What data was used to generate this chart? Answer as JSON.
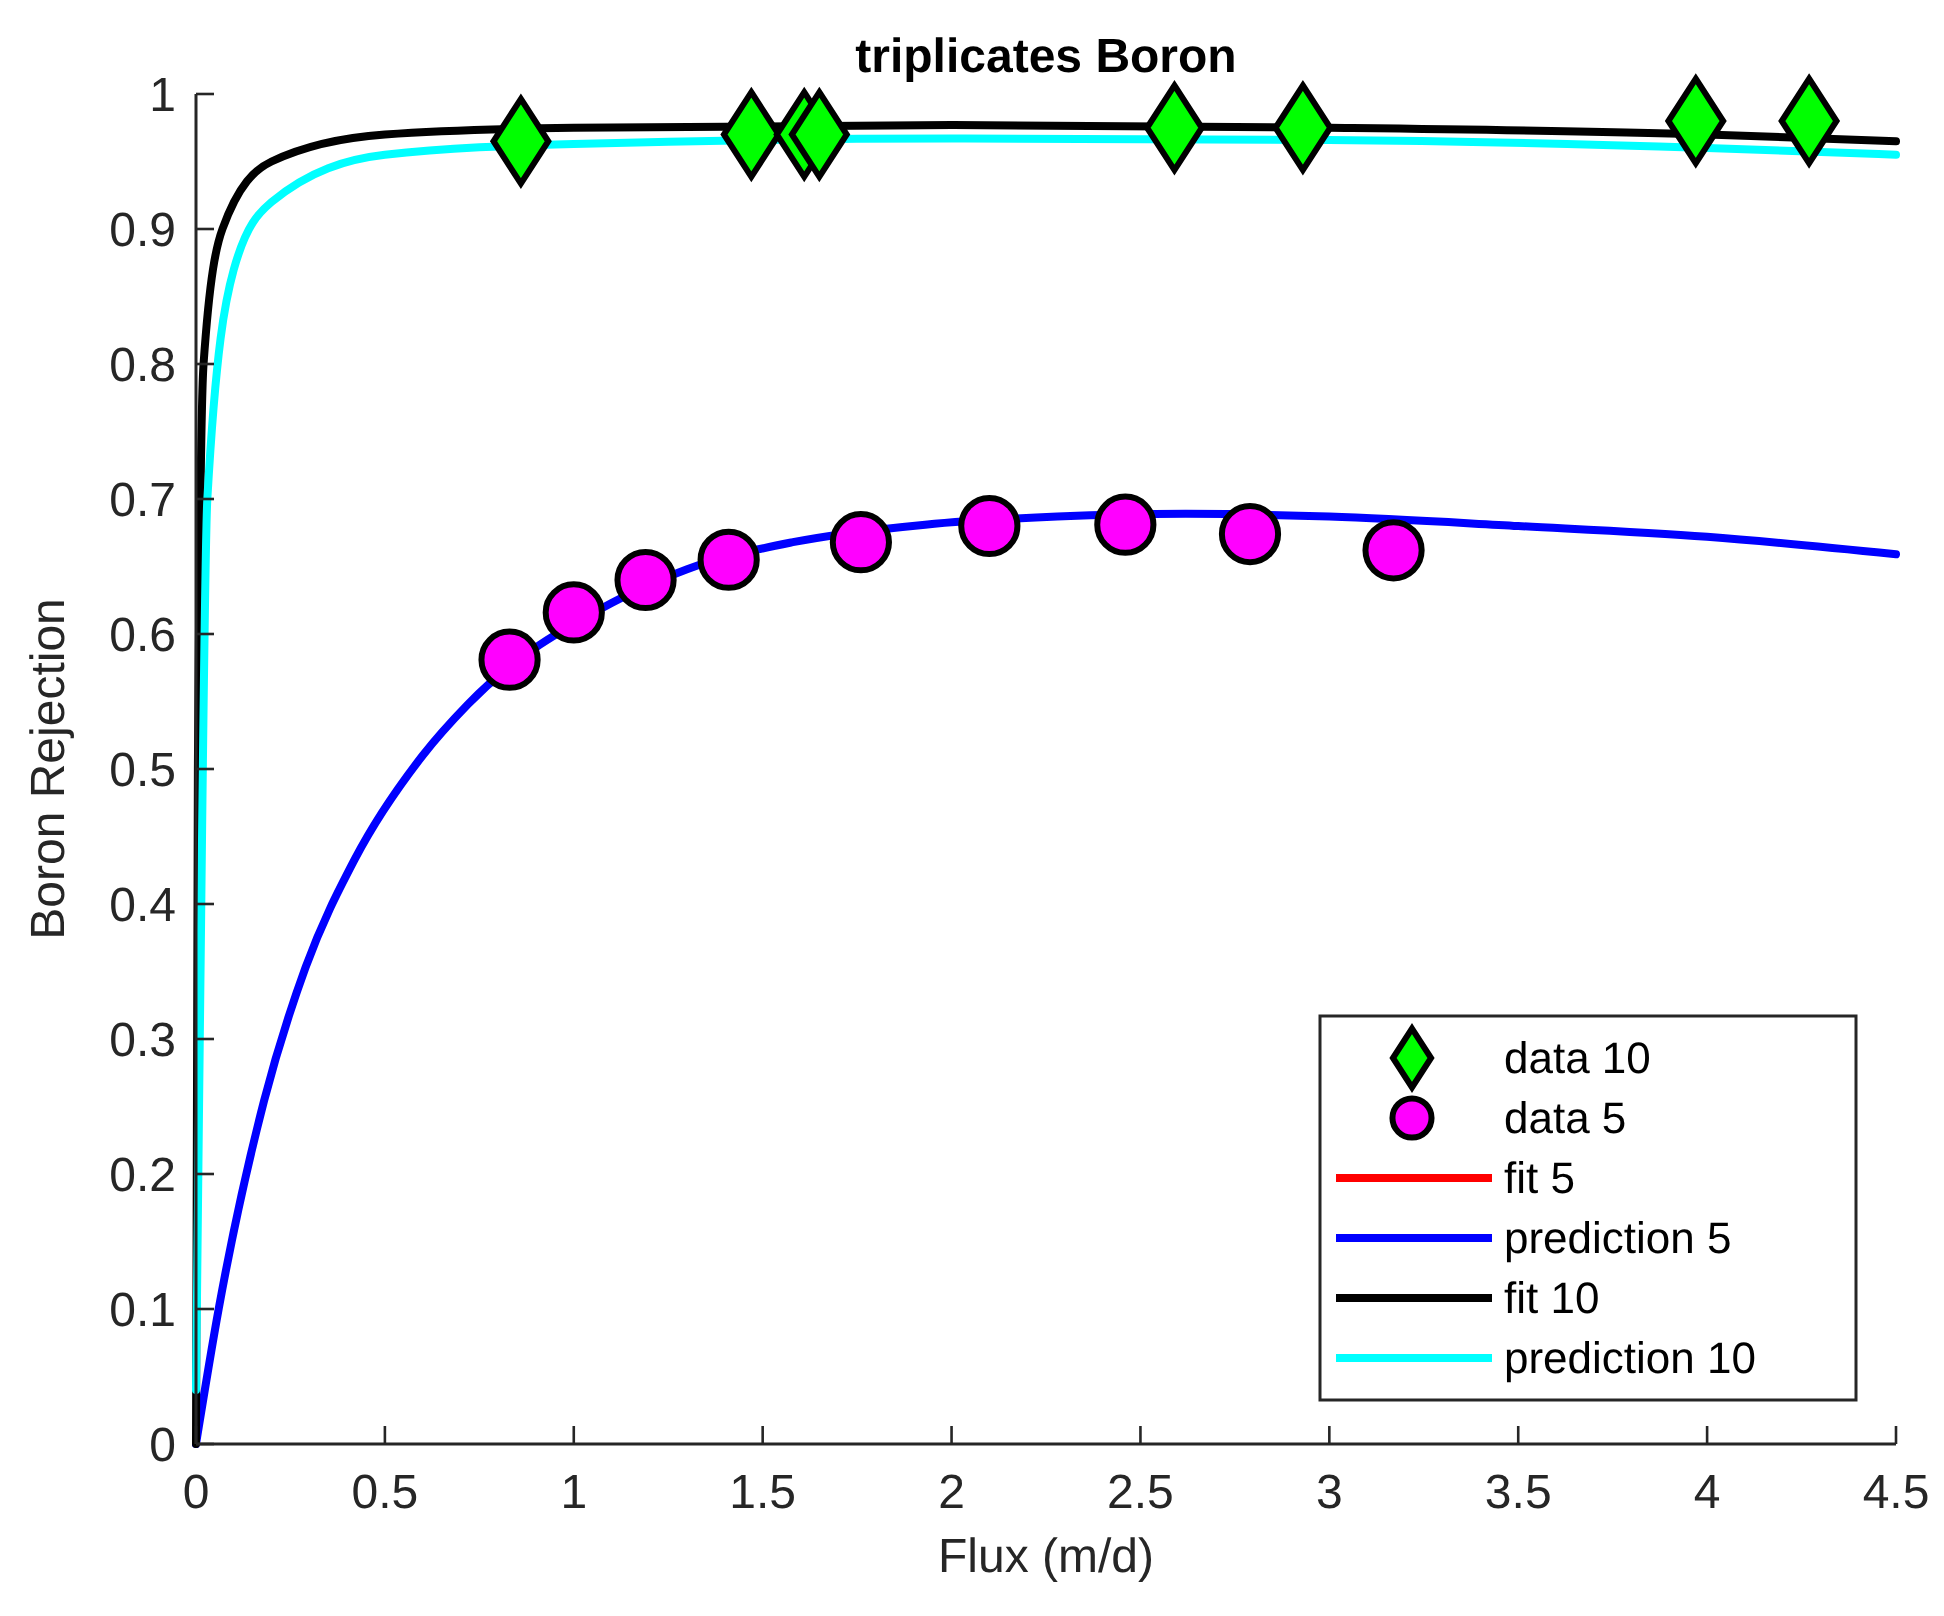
{
  "chart_data": {
    "type": "line",
    "title": "triplicates Boron",
    "xlabel": "Flux (m/d)",
    "ylabel": "Boron Rejection",
    "xlim": [
      0,
      4.5
    ],
    "xticks": [
      0,
      0.5,
      1,
      1.5,
      2,
      2.5,
      3,
      3.5,
      4,
      4.5
    ],
    "ylim": [
      0,
      1
    ],
    "yticks": [
      0,
      0.1,
      0.2,
      0.3,
      0.4,
      0.5,
      0.6,
      0.7,
      0.8,
      0.9,
      1
    ],
    "grid": false,
    "legend": "bottom right",
    "series": [
      {
        "name": "data 10",
        "type": "scatter",
        "marker": "diamond",
        "color": "#00ff00",
        "x": [
          0.86,
          1.47,
          1.61,
          1.65,
          2.59,
          2.93,
          3.97,
          4.27
        ],
        "values": [
          0.965,
          0.97,
          0.97,
          0.97,
          0.975,
          0.975,
          0.98,
          0.98
        ]
      },
      {
        "name": "data 5",
        "type": "scatter",
        "marker": "circle",
        "color": "#ff00ff",
        "x": [
          0.83,
          1.0,
          1.19,
          1.41,
          1.76,
          2.1,
          2.46,
          2.79,
          3.17
        ],
        "values": [
          0.581,
          0.616,
          0.64,
          0.655,
          0.668,
          0.68,
          0.681,
          0.674,
          0.662
        ]
      },
      {
        "name": "fit 5",
        "marker": "none",
        "color": "#ff0000"
      },
      {
        "name": "prediction 5",
        "marker": "none",
        "color": "#0000ff",
        "x": [
          0,
          0.06,
          0.18,
          0.29,
          0.42,
          0.6,
          0.72,
          1.1,
          1.3,
          1.58,
          1.93,
          2.28,
          2.62,
          3.0,
          3.5,
          4.0,
          4.5
        ],
        "values": [
          0,
          0.1,
          0.254,
          0.353,
          0.433,
          0.51,
          0.548,
          0.623,
          0.648,
          0.668,
          0.681,
          0.687,
          0.689,
          0.687,
          0.68,
          0.672,
          0.659
        ]
      },
      {
        "name": "fit 10",
        "marker": "none",
        "color": "#000000",
        "x": [
          0,
          0.005,
          0.02,
          0.07,
          0.2,
          0.5,
          1,
          2,
          3,
          4,
          4.5
        ],
        "values": [
          0,
          0.5,
          0.8,
          0.9,
          0.95,
          0.97,
          0.975,
          0.977,
          0.975,
          0.97,
          0.965
        ]
      },
      {
        "name": "prediction 10",
        "marker": "none",
        "color": "#00ffff",
        "x": [
          0,
          0.01,
          0.03,
          0.1,
          0.2,
          0.5,
          1,
          2,
          3,
          4,
          4.5
        ],
        "values": [
          0.04,
          0.3,
          0.7,
          0.87,
          0.92,
          0.955,
          0.963,
          0.967,
          0.966,
          0.96,
          0.955
        ]
      }
    ]
  }
}
